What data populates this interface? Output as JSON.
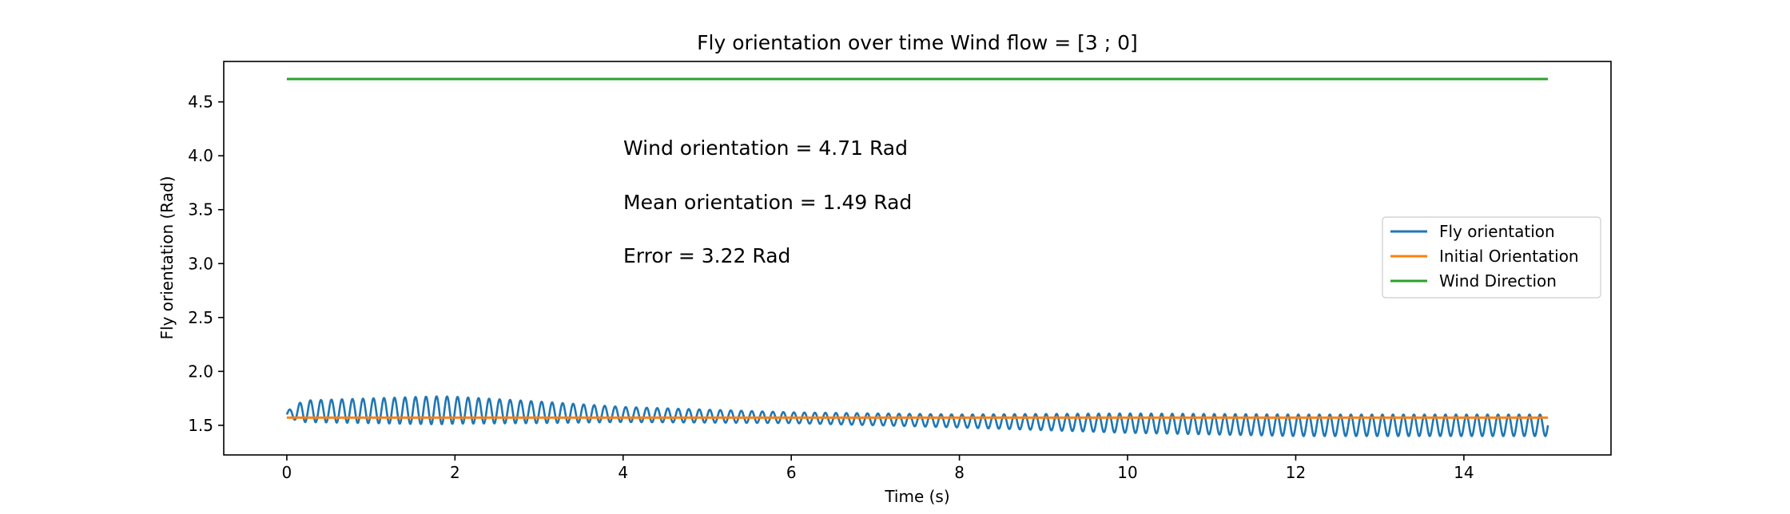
{
  "chart_data": {
    "type": "line",
    "title": "Fly orientation over time Wind flow = [3 ; 0]",
    "xlabel": "Time (s)",
    "ylabel": "Fly orientation (Rad)",
    "xlim": [
      -0.75,
      15.75
    ],
    "ylim": [
      1.225,
      4.875
    ],
    "xticks": [
      0,
      2,
      4,
      6,
      8,
      10,
      12,
      14
    ],
    "yticks": [
      1.5,
      2.0,
      2.5,
      3.0,
      3.5,
      4.0,
      4.5
    ],
    "xtick_labels": [
      "0",
      "2",
      "4",
      "6",
      "8",
      "10",
      "12",
      "14"
    ],
    "ytick_labels": [
      "1.5",
      "2.0",
      "2.5",
      "3.0",
      "3.5",
      "4.0",
      "4.5"
    ],
    "grid": false,
    "legend_position": "center-right",
    "annotations": [
      "Wind orientation = 4.71 Rad",
      "Mean orientation = 1.49 Rad",
      "Error = 3.22 Rad"
    ],
    "series": [
      {
        "name": "Fly orientation",
        "color": "#1f77b4",
        "style": "oscillation",
        "x_start": 0,
        "x_end": 15,
        "oscillation_period_s": 0.125,
        "center": [
          [
            0,
            1.6
          ],
          [
            0.2,
            1.63
          ],
          [
            2,
            1.64
          ],
          [
            4,
            1.6
          ],
          [
            6,
            1.57
          ],
          [
            8,
            1.54
          ],
          [
            10,
            1.52
          ],
          [
            12,
            1.5
          ],
          [
            15,
            1.5
          ]
        ],
        "amplitude": [
          [
            0,
            0.03
          ],
          [
            0.2,
            0.1
          ],
          [
            1.8,
            0.13
          ],
          [
            3,
            0.1
          ],
          [
            4,
            0.07
          ],
          [
            6,
            0.05
          ],
          [
            8,
            0.06
          ],
          [
            10,
            0.09
          ],
          [
            12,
            0.1
          ],
          [
            15,
            0.1
          ]
        ]
      },
      {
        "name": "Initial Orientation",
        "color": "#ff7f0e",
        "x": [
          0,
          15
        ],
        "y": [
          1.5708,
          1.5708
        ]
      },
      {
        "name": "Wind Direction",
        "color": "#2ca02c",
        "x": [
          0,
          15
        ],
        "y": [
          4.7124,
          4.7124
        ]
      }
    ]
  }
}
